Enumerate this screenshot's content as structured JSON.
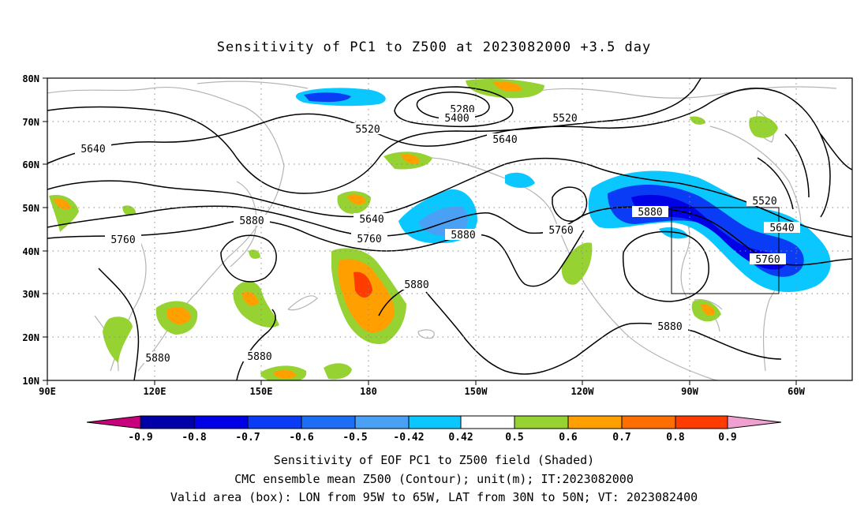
{
  "title": "Sensitivity of PC1 to Z500 at 2023082000 +3.5 day",
  "lat_labels": [
    "80N",
    "70N",
    "60N",
    "50N",
    "40N",
    "30N",
    "20N",
    "10N"
  ],
  "lon_labels": [
    "90E",
    "120E",
    "150E",
    "180",
    "150W",
    "120W",
    "90W",
    "60W"
  ],
  "contour_labels": [
    "5280",
    "5400",
    "5520",
    "5520",
    "5520",
    "5640",
    "5640",
    "5640",
    "5640",
    "5760",
    "5760",
    "5760",
    "5760",
    "5880",
    "5880",
    "5880",
    "5880",
    "5880",
    "5880",
    "5880"
  ],
  "colorbar": {
    "labels": [
      "-0.9",
      "-0.8",
      "-0.7",
      "-0.6",
      "-0.5",
      "-0.42",
      "0.42",
      "0.5",
      "0.6",
      "0.7",
      "0.8",
      "0.9"
    ],
    "colors": [
      "#c8007c",
      "#0000a8",
      "#0000e6",
      "#0a3cf5",
      "#1e6ef5",
      "#4aa0f5",
      "#0ac8ff",
      "#ffffff",
      "#96d232",
      "#ffa000",
      "#ff6e00",
      "#ff3c00",
      "#ff0000",
      "#f0a0d0"
    ]
  },
  "valid_box": {
    "lon_min": -95,
    "lon_max": -65,
    "lat_min": 30,
    "lat_max": 50
  },
  "caption": {
    "line1": "Sensitivity of EOF PC1 to Z500 field (Shaded)",
    "line2": "CMC ensemble mean Z500 (Contour); unit(m); IT:2023082000",
    "line3": "Valid area (box): LON from 95W to 65W, LAT from 30N to 50N; VT: 2023082400"
  }
}
